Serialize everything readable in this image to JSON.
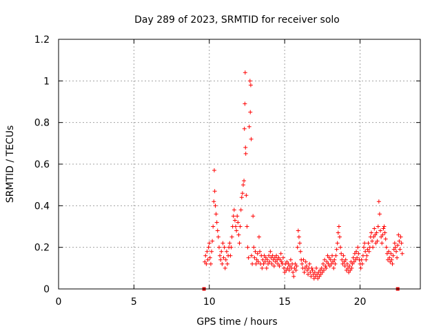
{
  "chart_data": {
    "type": "scatter",
    "title": "Day 289 of 2023, SRMTID for receiver solo",
    "xlabel": "GPS time / hours",
    "ylabel": "SRMTID / TECUs",
    "xlim": [
      0,
      24
    ],
    "ylim": [
      0,
      1.2
    ],
    "xticks": [
      0,
      5,
      10,
      15,
      20
    ],
    "yticks": [
      0,
      0.2,
      0.4,
      0.6,
      0.8,
      1,
      1.2
    ],
    "ytick_labels": [
      "0",
      "0.2",
      "0.4",
      "0.6",
      "0.8",
      "1",
      "1.2"
    ],
    "grid": true,
    "series_color": "#ff0000",
    "marker_color": "#dd0000",
    "points": [
      [
        9.7,
        0.13
      ],
      [
        9.75,
        0.16
      ],
      [
        9.8,
        0.12
      ],
      [
        9.85,
        0.18
      ],
      [
        9.9,
        0.14
      ],
      [
        9.95,
        0.2
      ],
      [
        10.0,
        0.22
      ],
      [
        10.05,
        0.15
      ],
      [
        10.1,
        0.12
      ],
      [
        10.15,
        0.18
      ],
      [
        10.2,
        0.23
      ],
      [
        10.25,
        0.3
      ],
      [
        10.3,
        0.42
      ],
      [
        10.33,
        0.57
      ],
      [
        10.36,
        0.47
      ],
      [
        10.4,
        0.4
      ],
      [
        10.45,
        0.36
      ],
      [
        10.5,
        0.32
      ],
      [
        10.55,
        0.28
      ],
      [
        10.6,
        0.25
      ],
      [
        10.65,
        0.2
      ],
      [
        10.7,
        0.16
      ],
      [
        10.75,
        0.14
      ],
      [
        10.8,
        0.18
      ],
      [
        10.85,
        0.12
      ],
      [
        10.9,
        0.22
      ],
      [
        10.95,
        0.15
      ],
      [
        11.0,
        0.2
      ],
      [
        11.05,
        0.1
      ],
      [
        11.1,
        0.14
      ],
      [
        11.15,
        0.18
      ],
      [
        11.2,
        0.12
      ],
      [
        11.25,
        0.16
      ],
      [
        11.3,
        0.2
      ],
      [
        11.35,
        0.22
      ],
      [
        11.4,
        0.16
      ],
      [
        11.45,
        0.2
      ],
      [
        11.5,
        0.25
      ],
      [
        11.55,
        0.3
      ],
      [
        11.6,
        0.35
      ],
      [
        11.65,
        0.38
      ],
      [
        11.7,
        0.33
      ],
      [
        11.75,
        0.3
      ],
      [
        11.8,
        0.28
      ],
      [
        11.85,
        0.35
      ],
      [
        11.9,
        0.32
      ],
      [
        11.95,
        0.26
      ],
      [
        12.0,
        0.22
      ],
      [
        12.05,
        0.3
      ],
      [
        12.1,
        0.38
      ],
      [
        12.15,
        0.44
      ],
      [
        12.2,
        0.46
      ],
      [
        12.25,
        0.5
      ],
      [
        12.3,
        0.52
      ],
      [
        12.33,
        0.77
      ],
      [
        12.36,
        0.89
      ],
      [
        12.38,
        1.04
      ],
      [
        12.4,
        0.68
      ],
      [
        12.42,
        0.65
      ],
      [
        12.45,
        0.45
      ],
      [
        12.5,
        0.3
      ],
      [
        12.55,
        0.2
      ],
      [
        12.6,
        0.15
      ],
      [
        12.65,
        0.78
      ],
      [
        12.7,
        1.0
      ],
      [
        12.72,
        0.85
      ],
      [
        12.75,
        0.98
      ],
      [
        12.78,
        0.72
      ],
      [
        12.8,
        0.16
      ],
      [
        12.85,
        0.12
      ],
      [
        12.9,
        0.35
      ],
      [
        12.95,
        0.2
      ],
      [
        13.0,
        0.15
      ],
      [
        13.05,
        0.18
      ],
      [
        13.1,
        0.12
      ],
      [
        13.15,
        0.14
      ],
      [
        13.2,
        0.17
      ],
      [
        13.25,
        0.13
      ],
      [
        13.3,
        0.25
      ],
      [
        13.35,
        0.18
      ],
      [
        13.4,
        0.12
      ],
      [
        13.45,
        0.16
      ],
      [
        13.5,
        0.1
      ],
      [
        13.55,
        0.14
      ],
      [
        13.6,
        0.12
      ],
      [
        13.65,
        0.16
      ],
      [
        13.7,
        0.13
      ],
      [
        13.75,
        0.15
      ],
      [
        13.8,
        0.1
      ],
      [
        13.85,
        0.14
      ],
      [
        13.9,
        0.12
      ],
      [
        13.95,
        0.16
      ],
      [
        14.0,
        0.13
      ],
      [
        14.05,
        0.18
      ],
      [
        14.1,
        0.15
      ],
      [
        14.15,
        0.12
      ],
      [
        14.2,
        0.16
      ],
      [
        14.25,
        0.14
      ],
      [
        14.3,
        0.11
      ],
      [
        14.35,
        0.15
      ],
      [
        14.4,
        0.13
      ],
      [
        14.45,
        0.16
      ],
      [
        14.5,
        0.14
      ],
      [
        14.55,
        0.12
      ],
      [
        14.6,
        0.15
      ],
      [
        14.65,
        0.11
      ],
      [
        14.7,
        0.14
      ],
      [
        14.75,
        0.17
      ],
      [
        14.8,
        0.13
      ],
      [
        14.85,
        0.12
      ],
      [
        14.9,
        0.15
      ],
      [
        14.95,
        0.1
      ],
      [
        15.0,
        0.08
      ],
      [
        15.05,
        0.12
      ],
      [
        15.1,
        0.09
      ],
      [
        15.15,
        0.13
      ],
      [
        15.2,
        0.1
      ],
      [
        15.25,
        0.12
      ],
      [
        15.3,
        0.09
      ],
      [
        15.35,
        0.11
      ],
      [
        15.4,
        0.14
      ],
      [
        15.45,
        0.1
      ],
      [
        15.5,
        0.12
      ],
      [
        15.55,
        0.08
      ],
      [
        15.6,
        0.06
      ],
      [
        15.65,
        0.1
      ],
      [
        15.7,
        0.12
      ],
      [
        15.75,
        0.09
      ],
      [
        15.8,
        0.11
      ],
      [
        15.85,
        0.2
      ],
      [
        15.9,
        0.28
      ],
      [
        15.95,
        0.25
      ],
      [
        16.0,
        0.22
      ],
      [
        16.05,
        0.18
      ],
      [
        16.1,
        0.14
      ],
      [
        16.15,
        0.12
      ],
      [
        16.2,
        0.1
      ],
      [
        16.25,
        0.14
      ],
      [
        16.3,
        0.08
      ],
      [
        16.35,
        0.1
      ],
      [
        16.4,
        0.13
      ],
      [
        16.45,
        0.11
      ],
      [
        16.5,
        0.09
      ],
      [
        16.55,
        0.07
      ],
      [
        16.6,
        0.1
      ],
      [
        16.65,
        0.12
      ],
      [
        16.7,
        0.08
      ],
      [
        16.75,
        0.06
      ],
      [
        16.8,
        0.1
      ],
      [
        16.85,
        0.09
      ],
      [
        16.9,
        0.07
      ],
      [
        16.95,
        0.05
      ],
      [
        17.0,
        0.08
      ],
      [
        17.05,
        0.06
      ],
      [
        17.1,
        0.1
      ],
      [
        17.15,
        0.07
      ],
      [
        17.2,
        0.05
      ],
      [
        17.25,
        0.08
      ],
      [
        17.3,
        0.06
      ],
      [
        17.35,
        0.09
      ],
      [
        17.4,
        0.07
      ],
      [
        17.45,
        0.1
      ],
      [
        17.5,
        0.08
      ],
      [
        17.55,
        0.12
      ],
      [
        17.6,
        0.09
      ],
      [
        17.65,
        0.14
      ],
      [
        17.7,
        0.11
      ],
      [
        17.75,
        0.1
      ],
      [
        17.8,
        0.13
      ],
      [
        17.85,
        0.16
      ],
      [
        17.9,
        0.12
      ],
      [
        17.95,
        0.15
      ],
      [
        18.0,
        0.11
      ],
      [
        18.05,
        0.14
      ],
      [
        18.1,
        0.12
      ],
      [
        18.15,
        0.16
      ],
      [
        18.2,
        0.13
      ],
      [
        18.25,
        0.1
      ],
      [
        18.3,
        0.14
      ],
      [
        18.35,
        0.12
      ],
      [
        18.4,
        0.16
      ],
      [
        18.45,
        0.19
      ],
      [
        18.5,
        0.22
      ],
      [
        18.55,
        0.27
      ],
      [
        18.6,
        0.3
      ],
      [
        18.65,
        0.25
      ],
      [
        18.7,
        0.2
      ],
      [
        18.75,
        0.17
      ],
      [
        18.8,
        0.14
      ],
      [
        18.85,
        0.12
      ],
      [
        18.9,
        0.16
      ],
      [
        18.95,
        0.13
      ],
      [
        19.0,
        0.11
      ],
      [
        19.05,
        0.14
      ],
      [
        19.1,
        0.09
      ],
      [
        19.15,
        0.12
      ],
      [
        19.2,
        0.1
      ],
      [
        19.25,
        0.08
      ],
      [
        19.3,
        0.11
      ],
      [
        19.35,
        0.09
      ],
      [
        19.4,
        0.13
      ],
      [
        19.45,
        0.1
      ],
      [
        19.5,
        0.12
      ],
      [
        19.55,
        0.15
      ],
      [
        19.6,
        0.13
      ],
      [
        19.65,
        0.17
      ],
      [
        19.7,
        0.14
      ],
      [
        19.75,
        0.18
      ],
      [
        19.8,
        0.15
      ],
      [
        19.85,
        0.2
      ],
      [
        19.9,
        0.17
      ],
      [
        19.95,
        0.14
      ],
      [
        20.0,
        0.12
      ],
      [
        20.05,
        0.1
      ],
      [
        20.1,
        0.14
      ],
      [
        20.15,
        0.12
      ],
      [
        20.2,
        0.16
      ],
      [
        20.25,
        0.2
      ],
      [
        20.3,
        0.22
      ],
      [
        20.35,
        0.18
      ],
      [
        20.4,
        0.14
      ],
      [
        20.45,
        0.16
      ],
      [
        20.5,
        0.19
      ],
      [
        20.55,
        0.22
      ],
      [
        20.6,
        0.18
      ],
      [
        20.65,
        0.2
      ],
      [
        20.7,
        0.25
      ],
      [
        20.75,
        0.27
      ],
      [
        20.8,
        0.23
      ],
      [
        20.85,
        0.2
      ],
      [
        20.9,
        0.25
      ],
      [
        20.95,
        0.29
      ],
      [
        21.0,
        0.26
      ],
      [
        21.05,
        0.22
      ],
      [
        21.1,
        0.27
      ],
      [
        21.15,
        0.23
      ],
      [
        21.2,
        0.3
      ],
      [
        21.25,
        0.42
      ],
      [
        21.3,
        0.36
      ],
      [
        21.35,
        0.28
      ],
      [
        21.4,
        0.25
      ],
      [
        21.45,
        0.22
      ],
      [
        21.5,
        0.26
      ],
      [
        21.55,
        0.29
      ],
      [
        21.6,
        0.3
      ],
      [
        21.65,
        0.27
      ],
      [
        21.7,
        0.24
      ],
      [
        21.75,
        0.2
      ],
      [
        21.8,
        0.17
      ],
      [
        21.85,
        0.14
      ],
      [
        21.9,
        0.18
      ],
      [
        21.95,
        0.15
      ],
      [
        22.0,
        0.13
      ],
      [
        22.05,
        0.17
      ],
      [
        22.1,
        0.14
      ],
      [
        22.15,
        0.12
      ],
      [
        22.2,
        0.16
      ],
      [
        22.25,
        0.19
      ],
      [
        22.3,
        0.22
      ],
      [
        22.35,
        0.2
      ],
      [
        22.4,
        0.18
      ],
      [
        22.45,
        0.15
      ],
      [
        22.5,
        0.21
      ],
      [
        22.55,
        0.26
      ],
      [
        22.6,
        0.23
      ],
      [
        22.65,
        0.19
      ],
      [
        22.7,
        0.25
      ],
      [
        22.75,
        0.22
      ],
      [
        22.8,
        0.17
      ]
    ],
    "edge_markers": [
      [
        9.65,
        0.0
      ],
      [
        22.5,
        0.0
      ]
    ]
  }
}
